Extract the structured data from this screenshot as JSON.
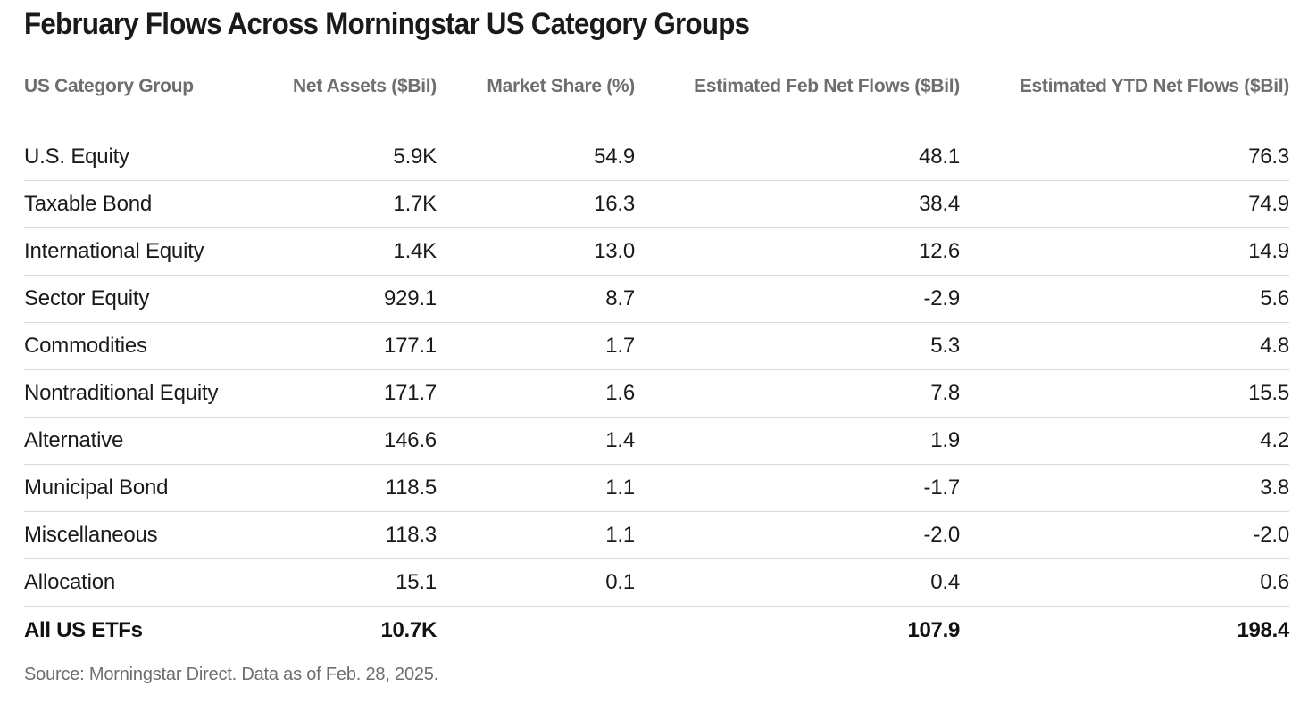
{
  "chart_data": {
    "type": "table",
    "title": "February Flows Across Morningstar US Category Groups",
    "columns": [
      "US Category Group",
      "Net Assets ($Bil)",
      "Market Share (%)",
      "Estimated Feb Net Flows ($Bil)",
      "Estimated YTD Net Flows ($Bil)"
    ],
    "rows": [
      [
        "U.S. Equity",
        "5.9K",
        "54.9",
        "48.1",
        "76.3"
      ],
      [
        "Taxable Bond",
        "1.7K",
        "16.3",
        "38.4",
        "74.9"
      ],
      [
        "International Equity",
        "1.4K",
        "13.0",
        "12.6",
        "14.9"
      ],
      [
        "Sector Equity",
        "929.1",
        "8.7",
        "-2.9",
        "5.6"
      ],
      [
        "Commodities",
        "177.1",
        "1.7",
        "5.3",
        "4.8"
      ],
      [
        "Nontraditional Equity",
        "171.7",
        "1.6",
        "7.8",
        "15.5"
      ],
      [
        "Alternative",
        "146.6",
        "1.4",
        "1.9",
        "4.2"
      ],
      [
        "Municipal Bond",
        "118.5",
        "1.1",
        "-1.7",
        "3.8"
      ],
      [
        "Miscellaneous",
        "118.3",
        "1.1",
        "-2.0",
        "-2.0"
      ],
      [
        "Allocation",
        "15.1",
        "0.1",
        "0.4",
        "0.6"
      ]
    ],
    "total": [
      "All US ETFs",
      "10.7K",
      "",
      "107.9",
      "198.4"
    ],
    "source": "Source: Morningstar Direct. Data as of Feb. 28, 2025."
  },
  "colors": {
    "text": "#1a1a1a",
    "header_text": "#6e6e6e",
    "row_divider": "#d9d9d9"
  }
}
